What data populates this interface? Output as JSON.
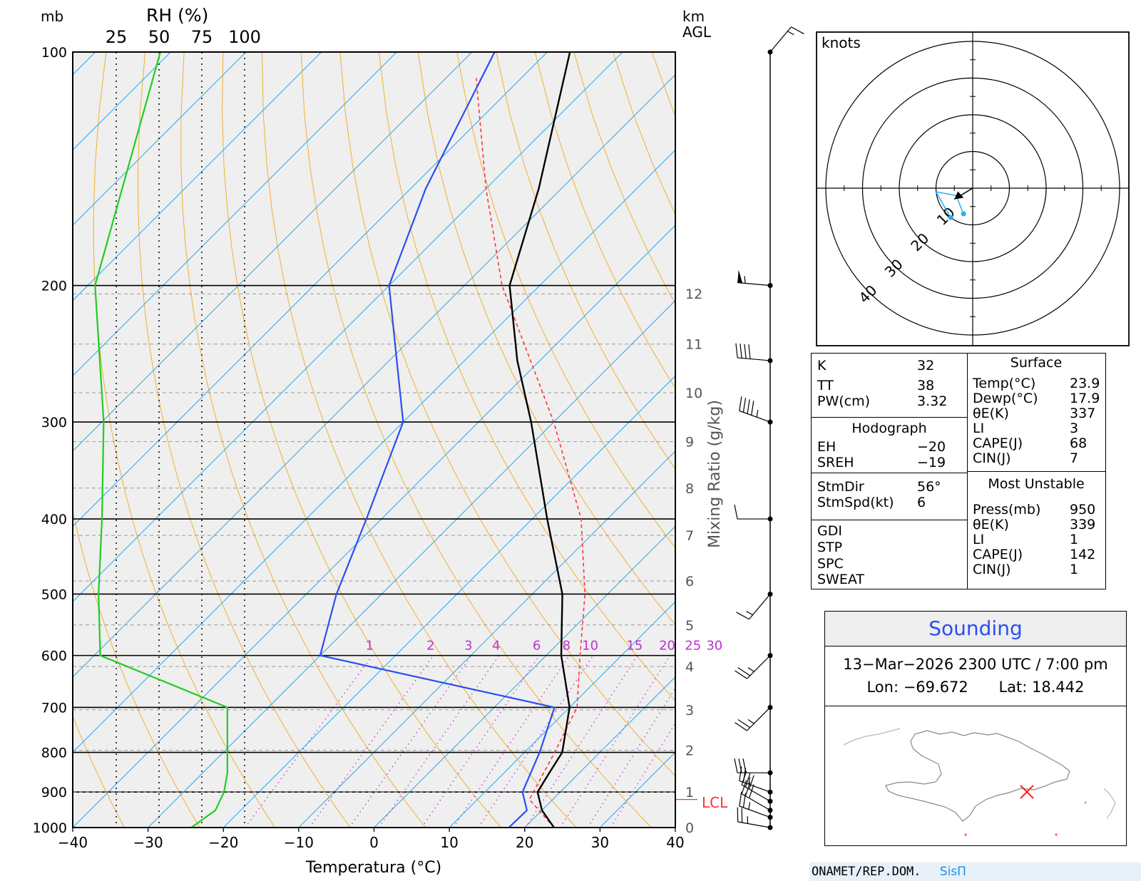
{
  "skewt": {
    "p_axis_label": "mb",
    "rh_axis_label": "RH  (%)",
    "rh_ticks": [
      "25",
      "50",
      "75",
      "100"
    ],
    "km_label": "km",
    "agl_label": "AGL",
    "mr_axis_label": "Mixing Ratio  (g/kg)",
    "x_axis_label": "Temperatura  (°C)",
    "lcl_label": "LCL",
    "colors": {
      "temperature": "#000000",
      "dewpoint": "#2a4ff0",
      "rh": "#22cc22",
      "parcel": "#ff3333",
      "isotherm": "#29aaf0",
      "dry_adiabat": "#f0b030",
      "mixing_ratio": "#bb33cc",
      "background": "#efefef"
    }
  },
  "chart_data": {
    "type": "skew-t",
    "pressure_levels_mb": [
      100,
      200,
      300,
      400,
      500,
      600,
      700,
      800,
      900,
      1000
    ],
    "pressure_labels": [
      "100",
      "200",
      "300",
      "400",
      "500",
      "600",
      "700",
      "800",
      "900",
      "1000"
    ],
    "temperature_ticks": [
      "−40",
      "−30",
      "−20",
      "−10",
      "0",
      "10",
      "20",
      "30",
      "40"
    ],
    "xlim_c": [
      -40,
      40
    ],
    "ylim_mb": [
      1000,
      100
    ],
    "height_km_ticks": [
      {
        "label": "0",
        "p": 1000
      },
      {
        "label": "1",
        "p": 900
      },
      {
        "label": "2",
        "p": 795
      },
      {
        "label": "3",
        "p": 705
      },
      {
        "label": "4",
        "p": 620
      },
      {
        "label": "5",
        "p": 548
      },
      {
        "label": "6",
        "p": 481
      },
      {
        "label": "7",
        "p": 420
      },
      {
        "label": "8",
        "p": 365
      },
      {
        "label": "9",
        "p": 318
      },
      {
        "label": "10",
        "p": 275
      },
      {
        "label": "11",
        "p": 238
      },
      {
        "label": "12",
        "p": 205
      }
    ],
    "mixing_ratio_labels": [
      "1",
      "2",
      "3",
      "4",
      "6",
      "8",
      "10",
      "15",
      "20",
      "25",
      "30"
    ],
    "mixing_ratio_values": [
      1,
      2,
      3,
      4,
      6,
      8,
      10,
      15,
      20,
      25,
      30
    ],
    "temperature_profile": [
      {
        "p": 1000,
        "t": 23.9
      },
      {
        "p": 950,
        "t": 20
      },
      {
        "p": 900,
        "t": 17
      },
      {
        "p": 850,
        "t": 16
      },
      {
        "p": 800,
        "t": 15
      },
      {
        "p": 700,
        "t": 10
      },
      {
        "p": 600,
        "t": 2
      },
      {
        "p": 500,
        "t": -6
      },
      {
        "p": 400,
        "t": -18
      },
      {
        "p": 300,
        "t": -33
      },
      {
        "p": 250,
        "t": -43
      },
      {
        "p": 200,
        "t": -54
      },
      {
        "p": 150,
        "t": -63
      },
      {
        "p": 100,
        "t": -77
      }
    ],
    "dewpoint_profile": [
      {
        "p": 1000,
        "t": 17.9
      },
      {
        "p": 950,
        "t": 18
      },
      {
        "p": 900,
        "t": 15
      },
      {
        "p": 800,
        "t": 12
      },
      {
        "p": 700,
        "t": 8
      },
      {
        "p": 600,
        "t": -30
      },
      {
        "p": 500,
        "t": -36
      },
      {
        "p": 400,
        "t": -42
      },
      {
        "p": 300,
        "t": -50
      },
      {
        "p": 250,
        "t": -59
      },
      {
        "p": 200,
        "t": -70
      },
      {
        "p": 150,
        "t": -78
      },
      {
        "p": 100,
        "t": -87
      }
    ],
    "parcel_profile": [
      {
        "p": 1000,
        "t": 23.9
      },
      {
        "p": 920,
        "t": 16.9
      },
      {
        "p": 800,
        "t": 14
      },
      {
        "p": 700,
        "t": 11
      },
      {
        "p": 600,
        "t": 4.5
      },
      {
        "p": 500,
        "t": -3
      },
      {
        "p": 400,
        "t": -13.5
      },
      {
        "p": 300,
        "t": -30
      },
      {
        "p": 200,
        "t": -55
      },
      {
        "p": 150,
        "t": -70
      },
      {
        "p": 108,
        "t": -86
      }
    ],
    "lcl_mb": 920,
    "rh_profile": [
      {
        "p": 1000,
        "rh": 69
      },
      {
        "p": 950,
        "rh": 83
      },
      {
        "p": 900,
        "rh": 88
      },
      {
        "p": 850,
        "rh": 90
      },
      {
        "p": 800,
        "rh": 90
      },
      {
        "p": 700,
        "rh": 90
      },
      {
        "p": 600,
        "rh": 16
      },
      {
        "p": 500,
        "rh": 15
      },
      {
        "p": 400,
        "rh": 17
      },
      {
        "p": 300,
        "rh": 18
      },
      {
        "p": 200,
        "rh": 13
      },
      {
        "p": 100,
        "rh": 51
      }
    ],
    "wind_barbs": [
      {
        "p": 1000,
        "dir": 280,
        "kt": 25
      },
      {
        "p": 970,
        "dir": 290,
        "kt": 25
      },
      {
        "p": 950,
        "dir": 300,
        "kt": 30
      },
      {
        "p": 925,
        "dir": 300,
        "kt": 30
      },
      {
        "p": 900,
        "dir": 290,
        "kt": 25
      },
      {
        "p": 850,
        "dir": 270,
        "kt": 30
      },
      {
        "p": 700,
        "dir": 225,
        "kt": 25
      },
      {
        "p": 600,
        "dir": 225,
        "kt": 25
      },
      {
        "p": 500,
        "dir": 220,
        "kt": 15
      },
      {
        "p": 400,
        "dir": 270,
        "kt": 10
      },
      {
        "p": 300,
        "dir": 290,
        "kt": 45
      },
      {
        "p": 250,
        "dir": 275,
        "kt": 40
      },
      {
        "p": 200,
        "dir": 275,
        "kt": 55
      },
      {
        "p": 100,
        "dir": 40,
        "kt": 15
      }
    ]
  },
  "hodograph": {
    "unit_label": "knots",
    "ring_labels": [
      "10",
      "20",
      "30",
      "40"
    ],
    "ring_values": [
      10,
      20,
      30,
      40
    ],
    "points": [
      [
        -2.5,
        -7
      ],
      [
        -4.5,
        -2
      ],
      [
        -10,
        -1
      ],
      [
        -6,
        -8
      ]
    ],
    "storm_motion": [
      -5,
      -3
    ]
  },
  "indices": {
    "top": [
      {
        "label": "K",
        "value": "32"
      },
      {
        "label": "TT",
        "value": "38"
      },
      {
        "label": "PW(cm)",
        "value": "3.32"
      }
    ],
    "hodograph_title": "Hodograph",
    "hodograph_rows": [
      {
        "label": "EH",
        "value": "−20"
      },
      {
        "label": "SREH",
        "value": "−19"
      }
    ],
    "storm_rows": [
      {
        "label": "StmDir",
        "value": "56°"
      },
      {
        "label": "StmSpd(kt)",
        "value": "6"
      }
    ],
    "misc_rows": [
      {
        "label": "GDI",
        "value": ""
      },
      {
        "label": "STP",
        "value": ""
      },
      {
        "label": "SPC",
        "value": ""
      },
      {
        "label": "SWEAT",
        "value": ""
      }
    ],
    "surface_title": "Surface",
    "surface_rows": [
      {
        "label": "Temp(°C)",
        "value": "23.9"
      },
      {
        "label": "Dewp(°C)",
        "value": "17.9"
      },
      {
        "label": "θE(K)",
        "value": "337"
      },
      {
        "label": "LI",
        "value": "3"
      },
      {
        "label": "CAPE(J)",
        "value": "68"
      },
      {
        "label": "CIN(J)",
        "value": "7"
      }
    ],
    "mu_title": "Most Unstable",
    "mu_rows": [
      {
        "label": "Press(mb)",
        "value": "950"
      },
      {
        "label": "θE(K)",
        "value": "339"
      },
      {
        "label": "LI",
        "value": "1"
      },
      {
        "label": "CAPE(J)",
        "value": "142"
      },
      {
        "label": "CIN(J)",
        "value": "1"
      }
    ]
  },
  "sounding": {
    "title": "Sounding",
    "datetime": "13−Mar−2026 2300  UTC / 7:00 pm",
    "lon_label": "Lon: −69.672",
    "lat_label": "Lat: 18.442",
    "marker_color": "#ff2222"
  },
  "footer": {
    "org": "ONAMET/REP.DOM.",
    "system": "SisΠ"
  }
}
